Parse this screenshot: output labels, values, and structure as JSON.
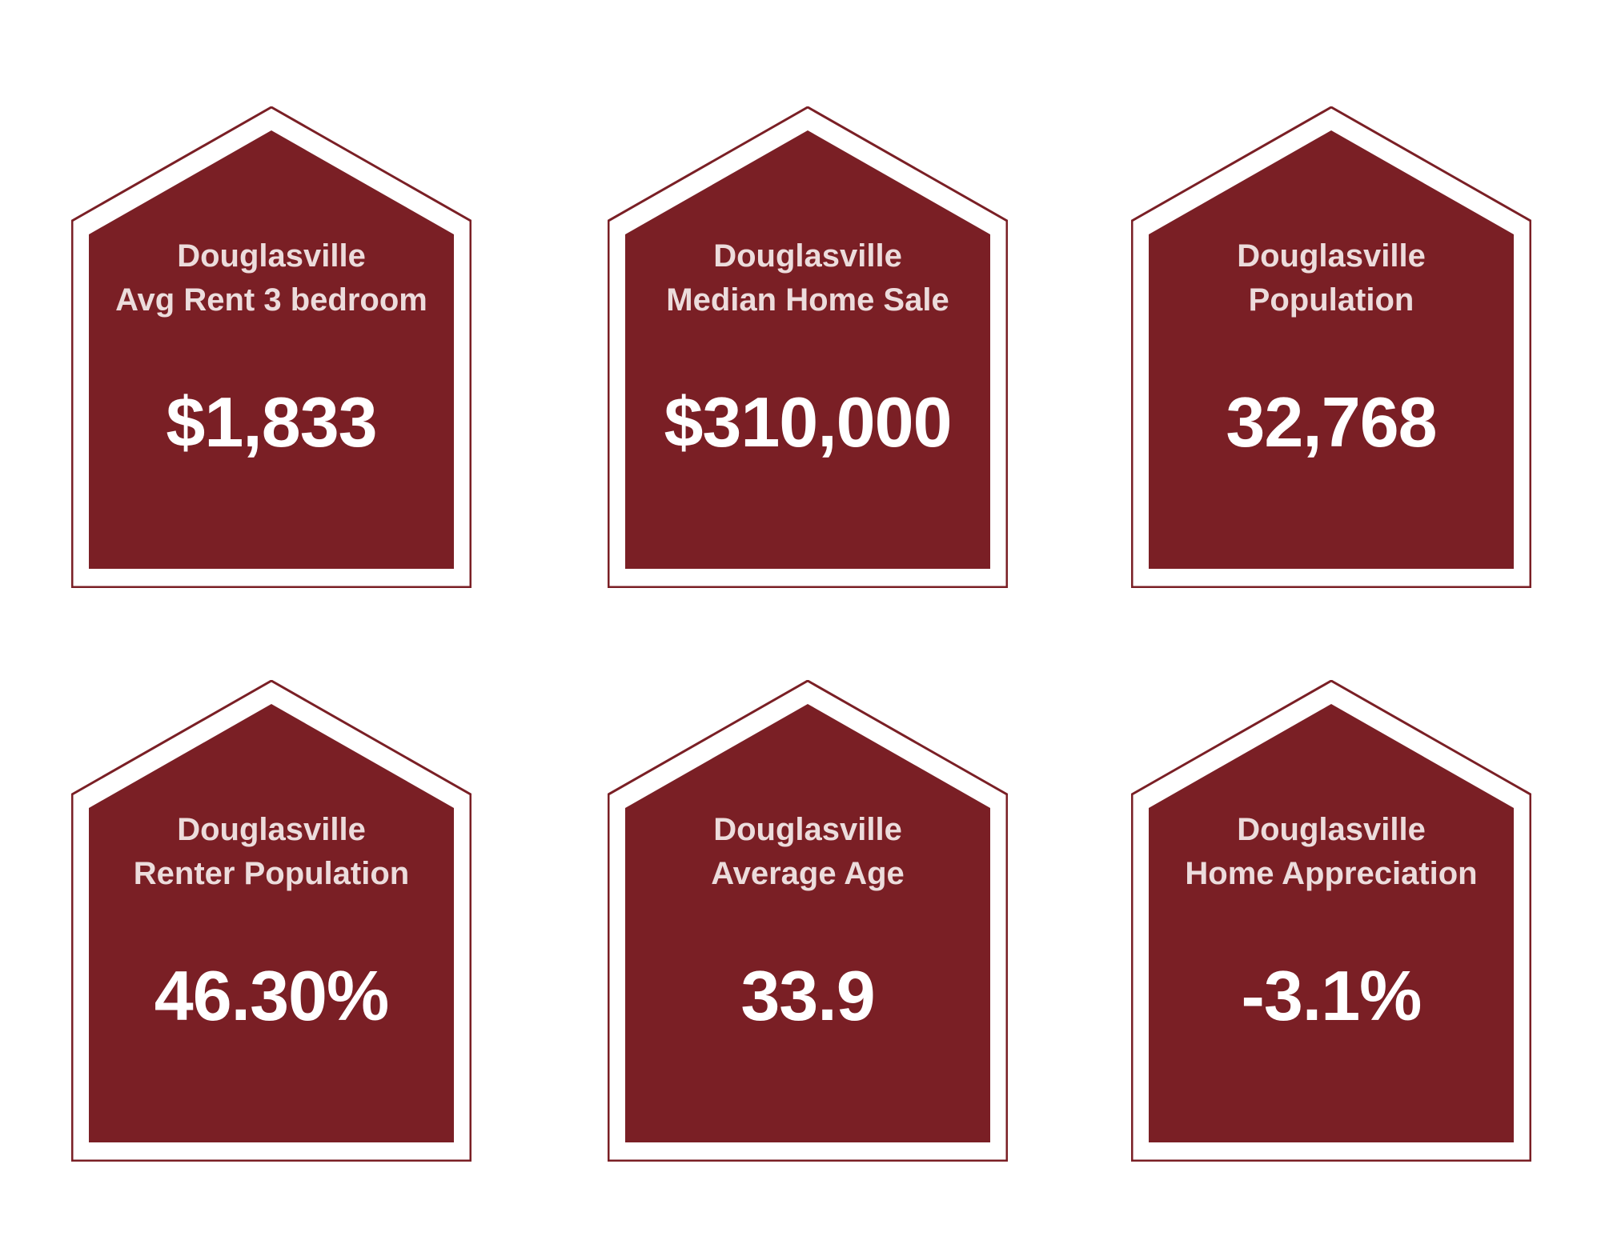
{
  "colors": {
    "house_fill": "#7a1f25",
    "house_outline": "#7a1f25",
    "label_text": "#ecdcdc",
    "value_text": "#ffffff",
    "background": "#ffffff"
  },
  "cards": [
    {
      "city": "Douglasville",
      "metric": "Avg Rent 3 bedroom",
      "value": "$1,833"
    },
    {
      "city": "Douglasville",
      "metric": "Median Home Sale",
      "value": "$310,000"
    },
    {
      "city": "Douglasville",
      "metric": "Population",
      "value": "32,768"
    },
    {
      "city": "Douglasville",
      "metric": "Renter Population",
      "value": "46.30%"
    },
    {
      "city": "Douglasville",
      "metric": "Average Age",
      "value": "33.9"
    },
    {
      "city": "Douglasville",
      "metric": "Home Appreciation",
      "value": "-3.1%"
    }
  ]
}
